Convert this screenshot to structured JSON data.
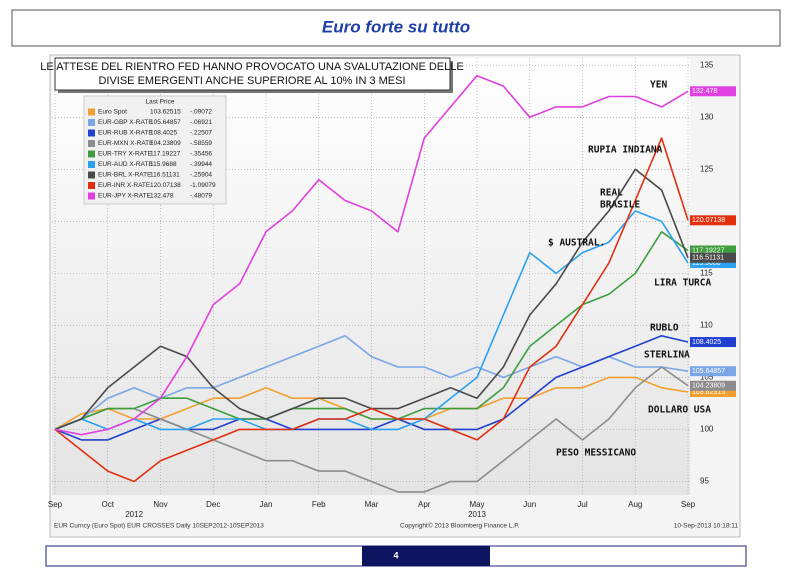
{
  "slide_title": "Euro forte su tutto",
  "page_number": "4",
  "chart_data": {
    "type": "line",
    "callout": [
      "LE ATTESE DEL RIENTRO FED HANNO PROVOCATO UNA SVALUTAZIONE DELLE",
      "DIVISE EMERGENTI ANCHE SUPERIORE AL 10% IN 3 MESI"
    ],
    "legend_header": "Last Price",
    "categories": [
      "Sep",
      null,
      "Oct",
      null,
      "Nov",
      null,
      "Dec",
      null,
      "Jan",
      null,
      "Feb",
      null,
      "Mar",
      null,
      "Apr",
      null,
      "May",
      null,
      "Jun",
      null,
      "Jul",
      null,
      "Aug",
      null,
      "Sep"
    ],
    "year_labels": [
      "2012",
      "2013"
    ],
    "ylim": [
      93.7,
      135.7
    ],
    "yticks": [
      95,
      100,
      105,
      110,
      115,
      120,
      125,
      130,
      135
    ],
    "grid": true,
    "series": [
      {
        "name": "Euro Spot",
        "last_price": "103.62515",
        "change": "-.09072",
        "color": "#f0a030",
        "values": [
          100,
          101.5,
          102,
          101,
          101,
          102,
          103,
          103,
          104,
          103,
          103,
          102,
          101,
          101,
          101,
          102,
          102,
          103,
          103,
          104,
          104,
          105,
          105,
          104,
          103.6
        ]
      },
      {
        "name": "EUR-GBP X-RATE",
        "last_price": "105.64857",
        "change": "-.06921",
        "color": "#7aa6e6",
        "values": [
          100,
          101,
          103,
          104,
          103,
          104,
          104,
          105,
          106,
          107,
          108,
          109,
          107,
          106,
          106,
          105,
          106,
          105,
          106,
          107,
          106,
          107,
          106,
          106,
          105.6
        ]
      },
      {
        "name": "EUR-RUB X-RATE",
        "last_price": "108.4025",
        "change": "-.22507",
        "color": "#2040d0",
        "values": [
          100,
          99,
          99,
          100,
          101,
          100,
          100,
          101,
          101,
          100,
          100,
          100,
          100,
          101,
          100,
          100,
          100,
          101,
          103,
          105,
          106,
          107,
          108,
          109,
          108.4
        ]
      },
      {
        "name": "EUR-MXN X-RATE",
        "last_price": "104.23809",
        "change": "-.58559",
        "color": "#8c8c8c",
        "values": [
          100,
          101,
          102,
          102,
          101,
          100,
          99,
          98,
          97,
          97,
          96,
          96,
          95,
          94,
          94,
          95,
          95,
          97,
          99,
          101,
          99,
          101,
          104,
          106,
          104.2
        ]
      },
      {
        "name": "EUR-TRY X-RATE",
        "last_price": "117.19227",
        "change": "-.35456",
        "color": "#3e9e3e",
        "values": [
          100,
          101,
          102,
          102,
          103,
          103,
          102,
          101,
          101,
          102,
          102,
          102,
          101,
          101,
          102,
          102,
          102,
          104,
          108,
          110,
          112,
          113,
          115,
          119,
          117.2
        ]
      },
      {
        "name": "EUR-AUD X-RATE",
        "last_price": "115.9688",
        "change": "-.39944",
        "color": "#2aa0f0",
        "values": [
          100,
          101,
          100,
          101,
          100,
          100,
          101,
          101,
          100,
          100,
          101,
          101,
          100,
          100,
          101,
          103,
          105,
          111,
          117,
          115,
          117,
          118,
          121,
          120,
          116
        ]
      },
      {
        "name": "EUR-BRL X-RATE",
        "last_price": "116.51131",
        "change": "-.25904",
        "color": "#4a4a4a",
        "values": [
          100,
          101,
          104,
          106,
          108,
          107,
          104,
          102,
          101,
          102,
          103,
          103,
          102,
          102,
          103,
          104,
          103,
          106,
          111,
          114,
          118,
          121,
          125,
          123,
          116.5
        ]
      },
      {
        "name": "EUR-INR X-RATE",
        "last_price": "120.07138",
        "change": "-1.09079",
        "color": "#e03010",
        "values": [
          100,
          98,
          96,
          95,
          97,
          98,
          99,
          100,
          100,
          100,
          101,
          101,
          102,
          101,
          101,
          100,
          99,
          101,
          106,
          108,
          112,
          116,
          122,
          128,
          120.1
        ]
      },
      {
        "name": "EUR-JPY X-RATE",
        "last_price": "132.478",
        "change": "-.48079",
        "color": "#e040e0",
        "values": [
          100,
          99.5,
          100,
          101,
          103,
          107,
          112,
          114,
          119,
          121,
          124,
          122,
          121,
          119,
          128,
          131,
          134,
          133,
          130,
          131,
          131,
          132,
          132,
          131,
          132.5
        ]
      }
    ],
    "annotations": [
      "YEN",
      "RUPIA INDIANA",
      "REAL",
      "BRASILE",
      "$ AUSTRAL.",
      "LIRA TURCA",
      "RUBLO",
      "STERLINA",
      "DOLLARO USA",
      "PESO MESSICANO"
    ],
    "footer": [
      "EUR Curncy (Euro Spot) EUR CROSSES  Daily 10SEP2012-10SEP2013",
      "Copyright© 2013 Bloomberg Finance L.P.",
      "10-Sep-2013 10:18:11"
    ]
  }
}
